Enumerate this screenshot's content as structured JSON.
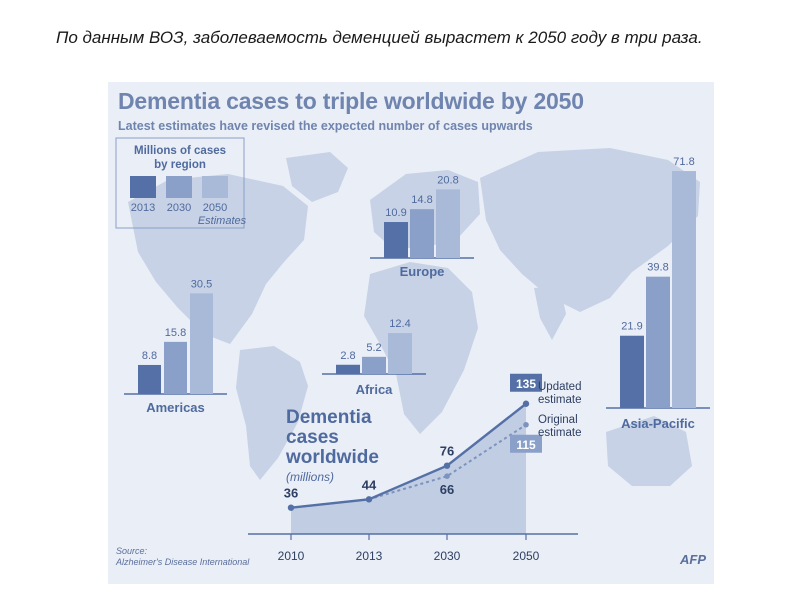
{
  "slide_caption": "По данным ВОЗ, заболеваемость деменцией вырастет к 2050 году в три раза.",
  "infographic": {
    "title": "Dementia cases to triple worldwide by 2050",
    "subtitle": "Latest estimates have revised the expected number of cases upwards",
    "source_label": "Source:",
    "source_name": "Alzheimer's Disease International",
    "credit": "AFP"
  },
  "colors": {
    "bar_2013": "#5470a6",
    "bar_2030": "#8aa0c8",
    "bar_2050": "#a9b9d8",
    "map": "#c7d2e6",
    "line": "#5470a6",
    "text": "#4f6a9e"
  },
  "chart_data": [
    {
      "type": "bar",
      "title": "Millions of cases by region",
      "legend": {
        "items": [
          "2013",
          "2030",
          "2050"
        ],
        "note": "Estimates",
        "placement": "top-left"
      },
      "categories": [
        "Americas",
        "Europe",
        "Africa",
        "Asia-Pacific"
      ],
      "series": [
        {
          "name": "2013",
          "values": [
            8.8,
            10.9,
            2.8,
            21.9
          ]
        },
        {
          "name": "2030",
          "values": [
            15.8,
            14.8,
            5.2,
            39.8
          ]
        },
        {
          "name": "2050",
          "values": [
            30.5,
            20.8,
            12.4,
            71.8
          ]
        }
      ]
    },
    {
      "type": "line",
      "title": "Dementia cases worldwide",
      "ylabel": "(millions)",
      "x": [
        "2010",
        "2013",
        "2030",
        "2050"
      ],
      "series": [
        {
          "name": "Updated estimate",
          "values": [
            36,
            44,
            76,
            135
          ]
        },
        {
          "name": "Original estimate",
          "values": [
            36,
            44,
            66,
            115
          ]
        }
      ]
    }
  ]
}
